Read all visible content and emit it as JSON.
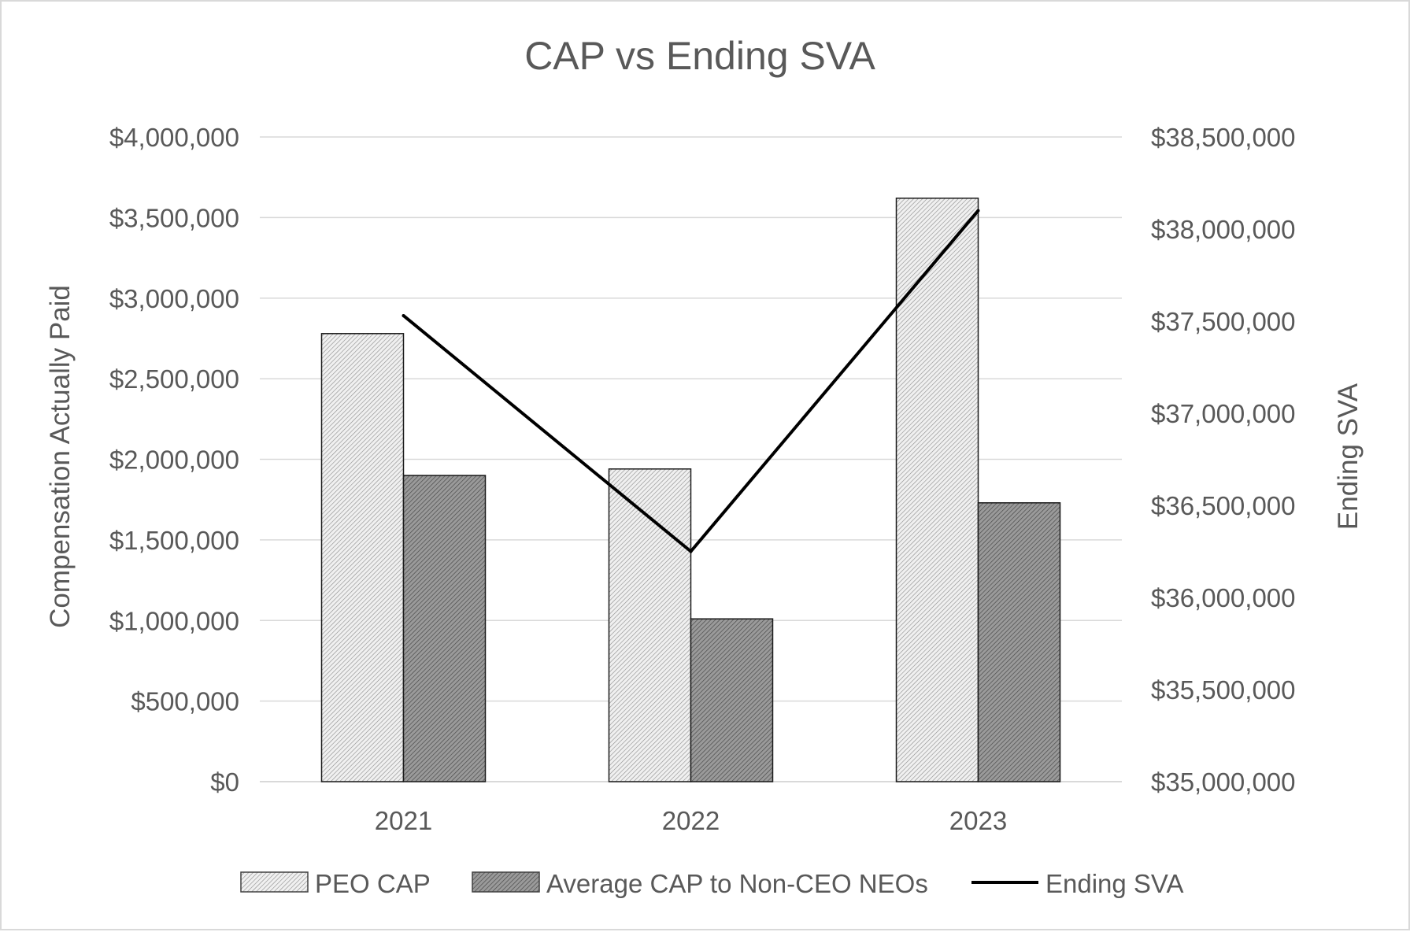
{
  "chart_data": {
    "type": "bar",
    "title": "CAP vs Ending SVA",
    "categories": [
      "2021",
      "2022",
      "2023"
    ],
    "ylabel": "Compensation Actually Paid",
    "y2label": "Ending SVA",
    "ylim": [
      0,
      4000000
    ],
    "y2lim": [
      35000000,
      38500000
    ],
    "yticks": [
      "$0",
      "$500,000",
      "$1,000,000",
      "$1,500,000",
      "$2,000,000",
      "$2,500,000",
      "$3,000,000",
      "$3,500,000",
      "$4,000,000"
    ],
    "y2ticks": [
      "$35,000,000",
      "$35,500,000",
      "$36,000,000",
      "$36,500,000",
      "$37,000,000",
      "$37,500,000",
      "$38,000,000",
      "$38,500,000"
    ],
    "grid": true,
    "legend_position": "bottom",
    "series": [
      {
        "name": "PEO CAP",
        "kind": "bar",
        "axis": "left",
        "pattern": "light-hatch",
        "values": [
          2780000,
          1940000,
          3620000
        ]
      },
      {
        "name": "Average CAP to Non-CEO NEOs",
        "kind": "bar",
        "axis": "left",
        "pattern": "dark-hatch",
        "values": [
          1900000,
          1010000,
          1730000
        ]
      },
      {
        "name": "Ending SVA",
        "kind": "line",
        "axis": "right",
        "color": "#000000",
        "values": [
          37530000,
          36250000,
          38100000
        ]
      }
    ]
  }
}
